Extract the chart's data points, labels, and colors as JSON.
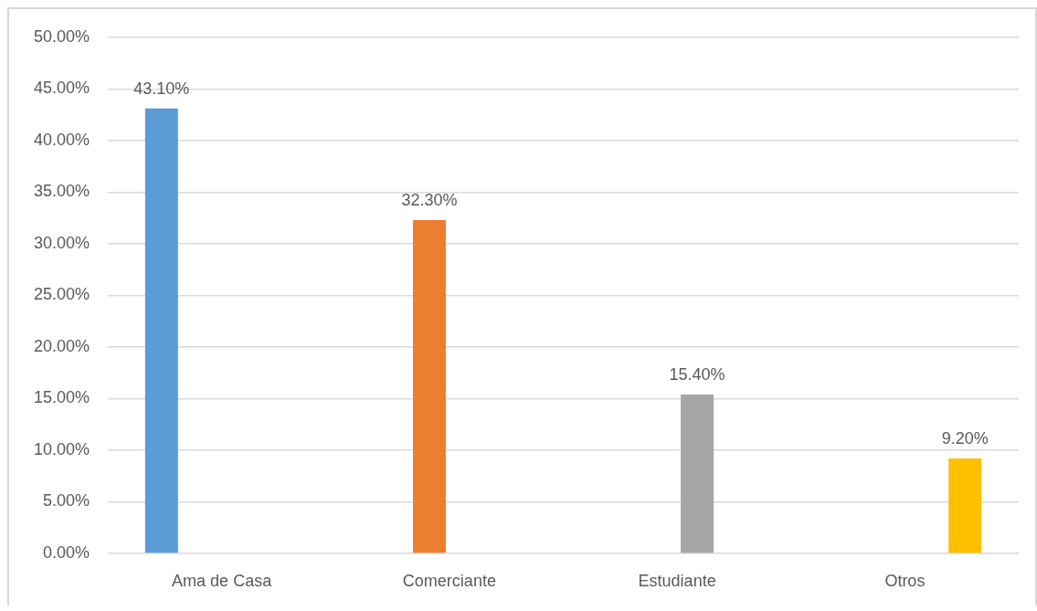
{
  "chart_data": {
    "type": "bar",
    "categories": [
      "Ama de Casa",
      "Comerciante",
      "Estudiante",
      "Otros"
    ],
    "values": [
      43.1,
      32.3,
      15.4,
      9.2
    ],
    "colors": [
      "#5b9bd5",
      "#ed7d31",
      "#a5a5a5",
      "#ffc000"
    ],
    "value_labels": [
      "43.10%",
      "32.30%",
      "15.40%",
      "9.20%"
    ],
    "ylim": [
      0,
      50
    ],
    "yticks": [
      {
        "value": 0,
        "label": "0.00%"
      },
      {
        "value": 5,
        "label": "5.00%"
      },
      {
        "value": 10,
        "label": "10.00%"
      },
      {
        "value": 15,
        "label": "15.00%"
      },
      {
        "value": 20,
        "label": "20.00%"
      },
      {
        "value": 25,
        "label": "25.00%"
      },
      {
        "value": 30,
        "label": "30.00%"
      },
      {
        "value": 35,
        "label": "35.00%"
      },
      {
        "value": 40,
        "label": "40.00%"
      },
      {
        "value": 45,
        "label": "45.00%"
      },
      {
        "value": 50,
        "label": "50.00%"
      }
    ],
    "grid": "y"
  }
}
